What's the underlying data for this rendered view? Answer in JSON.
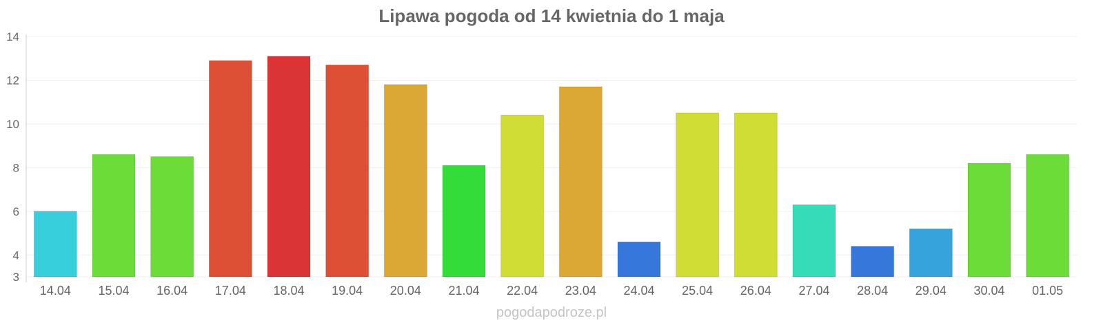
{
  "chart_data": {
    "type": "bar",
    "title": "Lipawa pogoda od 14 kwietnia do 1 maja",
    "xlabel": "",
    "ylabel": "",
    "ylim": [
      3,
      14
    ],
    "yticks": [
      3,
      4,
      6,
      8,
      10,
      12,
      14
    ],
    "grid": true,
    "categories": [
      "14.04",
      "15.04",
      "16.04",
      "17.04",
      "18.04",
      "19.04",
      "20.04",
      "21.04",
      "22.04",
      "23.04",
      "24.04",
      "25.04",
      "26.04",
      "27.04",
      "28.04",
      "29.04",
      "30.04",
      "01.05"
    ],
    "values": [
      6.0,
      8.6,
      8.5,
      12.9,
      13.1,
      12.7,
      11.8,
      8.1,
      10.4,
      11.7,
      4.6,
      10.5,
      10.5,
      6.3,
      4.4,
      5.2,
      8.2,
      8.6
    ],
    "colors": [
      "#36cfdb",
      "#6bdc38",
      "#6bdc38",
      "#dd5035",
      "#db3437",
      "#dd5035",
      "#dba735",
      "#34dc3a",
      "#cfdd34",
      "#dba735",
      "#3677dc",
      "#cfdd34",
      "#cfdd34",
      "#36dbb8",
      "#3677dc",
      "#36a3dc",
      "#6bdc38",
      "#6bdc38"
    ]
  },
  "watermark": "pogodapodroze.pl"
}
